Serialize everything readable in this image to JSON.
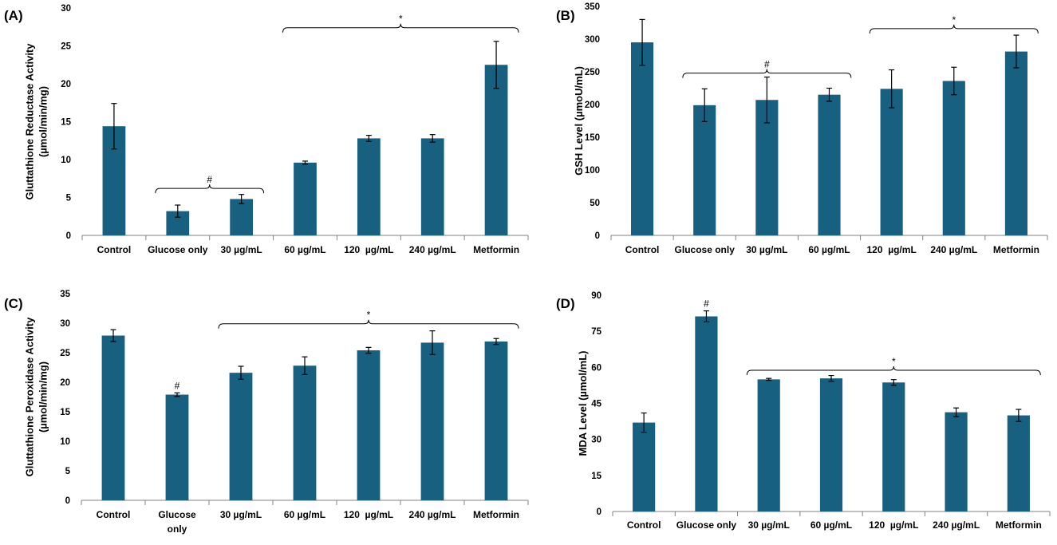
{
  "figure": {
    "bar_color": "#17607f",
    "axis_color": "#808080",
    "text_color": "#000000"
  },
  "chart_data": [
    {
      "panel_label": "(A)",
      "type": "bar",
      "title": "",
      "xlabel": "",
      "ylabel_lines": [
        "Gluttathione Reductase Activity",
        "(µmol/min/mg)"
      ],
      "ylim": [
        0,
        30
      ],
      "yticks": [
        0,
        5,
        10,
        15,
        20,
        25,
        30
      ],
      "categories": [
        [
          "Control"
        ],
        [
          "Glucose only"
        ],
        [
          "30 µg/mL"
        ],
        [
          "60 µg/mL"
        ],
        [
          "120  µg/mL"
        ],
        [
          "240 µg/mL"
        ],
        [
          "Metformin"
        ]
      ],
      "values": [
        14.4,
        3.2,
        4.8,
        9.6,
        12.8,
        12.8,
        22.5
      ],
      "errors": [
        3.0,
        0.8,
        0.6,
        0.2,
        0.4,
        0.5,
        3.1
      ],
      "markers": [],
      "brackets": [
        {
          "from": 1,
          "to": 2,
          "symbol": "#",
          "level": 6.2
        },
        {
          "from": 3,
          "to": 6,
          "symbol": "*",
          "level": 27.4
        }
      ]
    },
    {
      "panel_label": "(B)",
      "type": "bar",
      "title": "",
      "xlabel": "",
      "ylabel_lines": [
        "GSH Level (µmoU/mL)"
      ],
      "ylim": [
        0,
        350
      ],
      "yticks": [
        0,
        50,
        100,
        150,
        200,
        250,
        300,
        350
      ],
      "categories": [
        [
          "Control"
        ],
        [
          "Glucose only"
        ],
        [
          "30 µg/mL"
        ],
        [
          "60 µg/mL"
        ],
        [
          "120  µg/mL"
        ],
        [
          "240 µg/mL"
        ],
        [
          "Metformin"
        ]
      ],
      "values": [
        295,
        199,
        207,
        215,
        224,
        236,
        281
      ],
      "errors": [
        35,
        25,
        35,
        10,
        29,
        21,
        25
      ],
      "markers": [],
      "brackets": [
        {
          "from": 1,
          "to": 3,
          "symbol": "#",
          "level": 248
        },
        {
          "from": 4,
          "to": 6,
          "symbol": "*",
          "level": 316
        }
      ]
    },
    {
      "panel_label": "(C)",
      "type": "bar",
      "title": "",
      "xlabel": "",
      "ylabel_lines": [
        "Gluttathione Peroxidase Activity",
        "(µmol/min/mg)"
      ],
      "ylim": [
        0,
        35
      ],
      "yticks": [
        0,
        5,
        10,
        15,
        20,
        25,
        30,
        35
      ],
      "categories": [
        [
          "Control"
        ],
        [
          "Glucose",
          "only"
        ],
        [
          "30 µg/mL"
        ],
        [
          "60 µg/mL"
        ],
        [
          "120  µg/mL"
        ],
        [
          "240 µg/mL"
        ],
        [
          "Metformin"
        ]
      ],
      "values": [
        27.9,
        17.9,
        21.6,
        22.8,
        25.4,
        26.7,
        26.9
      ],
      "errors": [
        1.0,
        0.3,
        1.1,
        1.5,
        0.5,
        2.0,
        0.5
      ],
      "markers": [
        {
          "index": 1,
          "symbol": "#"
        }
      ],
      "brackets": [
        {
          "from": 2,
          "to": 6,
          "symbol": "*",
          "level": 29.9
        }
      ]
    },
    {
      "panel_label": "(D)",
      "type": "bar",
      "title": "",
      "xlabel": "",
      "ylabel_lines": [
        "MDA Level (µmol/mL)"
      ],
      "ylim": [
        0,
        90
      ],
      "yticks": [
        0,
        15,
        30,
        45,
        60,
        75,
        90
      ],
      "categories": [
        [
          "Control"
        ],
        [
          "Glucose only"
        ],
        [
          "30 µg/mL"
        ],
        [
          "60 µg/mL"
        ],
        [
          "120  µg/mL"
        ],
        [
          "240 µg/mL"
        ],
        [
          "Metformin"
        ]
      ],
      "values": [
        37,
        81.2,
        55,
        55.4,
        53.7,
        41.3,
        40
      ],
      "errors": [
        4.0,
        2.3,
        0.4,
        1.2,
        1.2,
        1.8,
        2.5
      ],
      "markers": [
        {
          "index": 1,
          "symbol": "#"
        }
      ],
      "brackets": [
        {
          "from": 2,
          "to": 6,
          "symbol": "*",
          "level": 58.8
        }
      ]
    }
  ]
}
